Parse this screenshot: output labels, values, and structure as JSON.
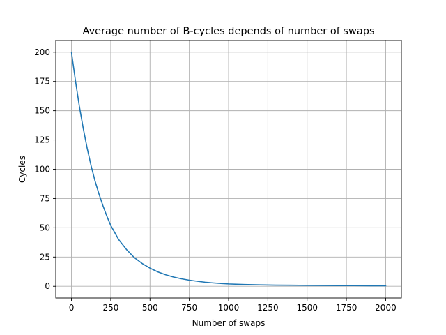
{
  "chart_data": {
    "type": "line",
    "title": "Average number of B-cycles depends of number of swaps",
    "xlabel": "Number of swaps",
    "ylabel": "Cycles",
    "xlim": [
      -100,
      2100
    ],
    "ylim": [
      -10,
      210
    ],
    "grid": true,
    "xticks": [
      0,
      250,
      500,
      750,
      1000,
      1250,
      1500,
      1750,
      2000
    ],
    "yticks": [
      0,
      25,
      50,
      75,
      100,
      125,
      150,
      175,
      200
    ],
    "series": [
      {
        "name": "B-cycles",
        "color": "#1f77b4",
        "x": [
          0,
          25,
          50,
          75,
          100,
          125,
          150,
          175,
          200,
          225,
          250,
          275,
          300,
          350,
          400,
          450,
          500,
          550,
          600,
          650,
          700,
          750,
          800,
          850,
          900,
          950,
          1000,
          1100,
          1200,
          1300,
          1400,
          1500,
          1600,
          1700,
          1800,
          1900,
          2000
        ],
        "y": [
          200,
          176,
          154,
          135,
          118,
          103,
          90,
          79,
          69,
          60,
          52,
          46,
          40,
          31.5,
          24.5,
          19.5,
          15.5,
          12.3,
          9.8,
          7.9,
          6.4,
          5.2,
          4.3,
          3.5,
          2.9,
          2.4,
          2.0,
          1.5,
          1.2,
          1.0,
          0.9,
          0.8,
          0.7,
          0.6,
          0.6,
          0.5,
          0.5
        ]
      }
    ]
  }
}
